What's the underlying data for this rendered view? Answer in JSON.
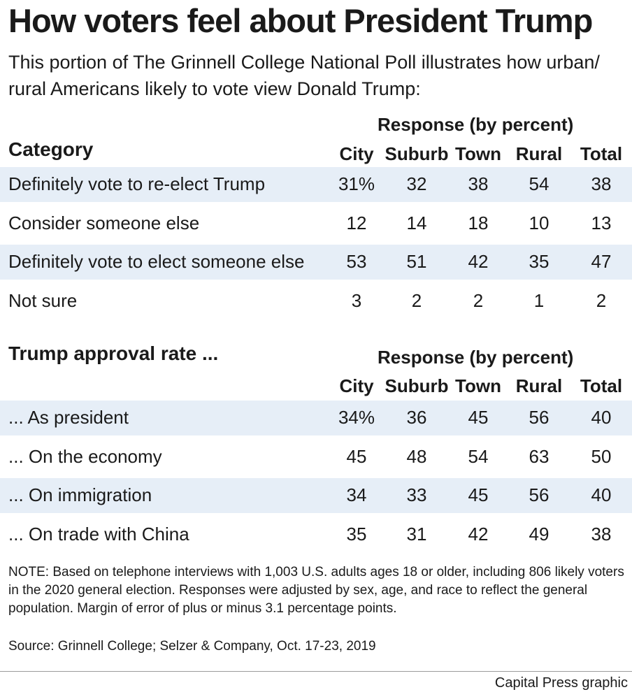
{
  "title": "How voters feel about President Trump",
  "subtitle": "This portion of The Grinnell College National Poll illustrates how urban/ rural Americans likely to vote view Donald Trump:",
  "chart_data": [
    {
      "type": "table",
      "row_header": "Category",
      "response_header": "Response (by percent)",
      "columns": [
        "City",
        "Suburb",
        "Town",
        "Rural",
        "Total"
      ],
      "rows": [
        {
          "label": "Definitely vote to re-elect Trump",
          "values": [
            "31%",
            "32",
            "38",
            "54",
            "38"
          ]
        },
        {
          "label": "Consider someone else",
          "values": [
            "12",
            "14",
            "18",
            "10",
            "13"
          ]
        },
        {
          "label": "Definitely vote to elect someone else",
          "values": [
            "53",
            "51",
            "42",
            "35",
            "47"
          ]
        },
        {
          "label": "Not sure",
          "values": [
            "3",
            "2",
            "2",
            "1",
            "2"
          ]
        }
      ]
    },
    {
      "type": "table",
      "row_header": "Trump approval rate ...",
      "response_header": "Response (by percent)",
      "columns": [
        "City",
        "Suburb",
        "Town",
        "Rural",
        "Total"
      ],
      "rows": [
        {
          "label": "... As president",
          "values": [
            "34%",
            "36",
            "45",
            "56",
            "40"
          ]
        },
        {
          "label": "... On the economy",
          "values": [
            "45",
            "48",
            "54",
            "63",
            "50"
          ]
        },
        {
          "label": "... On immigration",
          "values": [
            "34",
            "33",
            "45",
            "56",
            "40"
          ]
        },
        {
          "label": "... On trade with China",
          "values": [
            "35",
            "31",
            "42",
            "49",
            "38"
          ]
        }
      ]
    }
  ],
  "note": "NOTE: Based on telephone interviews with 1,003 U.S. adults ages 18 or older, including 806 likely voters in the 2020 general election. Responses were adjusted by sex, age, and race to reflect the general population. Margin of error  of plus or minus 3.1 percentage points.",
  "source": "Source: Grinnell College; Selzer & Company, Oct. 17-23, 2019",
  "credit": "Capital Press graphic",
  "colors": {
    "row_shade": "#e6eef7",
    "text": "#1a1a1a"
  }
}
